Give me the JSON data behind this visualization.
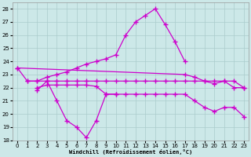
{
  "background": "#cce8e8",
  "grid_color": "#aacccc",
  "line_color": "#cc00cc",
  "xlabel": "Windchill (Refroidissement éolien,°C)",
  "ylim": [
    18,
    28.5
  ],
  "xlim": [
    -0.5,
    23.5
  ],
  "yticks": [
    18,
    19,
    20,
    21,
    22,
    23,
    24,
    25,
    26,
    27,
    28
  ],
  "xticks": [
    0,
    1,
    2,
    3,
    4,
    5,
    6,
    7,
    8,
    9,
    10,
    11,
    12,
    13,
    14,
    15,
    16,
    17,
    18,
    19,
    20,
    21,
    22,
    23
  ],
  "curves": [
    {
      "x": [
        0,
        1,
        2,
        3,
        4,
        5,
        6,
        7,
        8,
        9,
        10,
        11,
        12,
        13,
        14,
        15,
        16,
        17
      ],
      "y": [
        23.5,
        22.5,
        22.5,
        22.8,
        23.0,
        23.2,
        23.5,
        23.8,
        24.0,
        24.2,
        24.5,
        26.0,
        27.0,
        27.5,
        28.0,
        26.8,
        25.5,
        24.0
      ]
    },
    {
      "x": [
        2,
        3,
        4,
        5,
        6,
        7,
        8,
        9,
        10
      ],
      "y": [
        21.8,
        22.5,
        21.0,
        19.5,
        19.0,
        18.2,
        19.5,
        21.5,
        21.5
      ]
    },
    {
      "x": [
        2,
        3,
        4,
        5,
        6,
        7,
        8,
        9,
        10,
        11,
        12,
        13,
        14,
        15,
        16,
        17,
        18,
        19,
        20,
        21,
        22,
        23
      ],
      "y": [
        22.0,
        22.2,
        22.2,
        22.2,
        22.2,
        22.2,
        22.1,
        21.5,
        21.5,
        21.5,
        21.5,
        21.5,
        21.5,
        21.5,
        21.5,
        21.5,
        21.0,
        20.5,
        20.2,
        20.5,
        20.5,
        19.8
      ]
    },
    {
      "x": [
        1,
        2,
        3,
        4,
        5,
        6,
        7,
        8,
        9,
        10,
        11,
        12,
        13,
        14,
        15,
        16,
        17,
        18,
        19,
        20,
        21,
        22,
        23
      ],
      "y": [
        22.5,
        22.5,
        22.5,
        22.5,
        22.5,
        22.5,
        22.5,
        22.5,
        22.5,
        22.5,
        22.5,
        22.5,
        22.5,
        22.5,
        22.5,
        22.5,
        22.5,
        22.5,
        22.5,
        22.5,
        22.5,
        22.5,
        22.0
      ]
    },
    {
      "x": [
        0,
        17,
        18,
        19,
        20,
        21,
        22,
        23
      ],
      "y": [
        23.5,
        23.0,
        22.8,
        22.5,
        22.3,
        22.5,
        22.0,
        22.0
      ]
    }
  ]
}
